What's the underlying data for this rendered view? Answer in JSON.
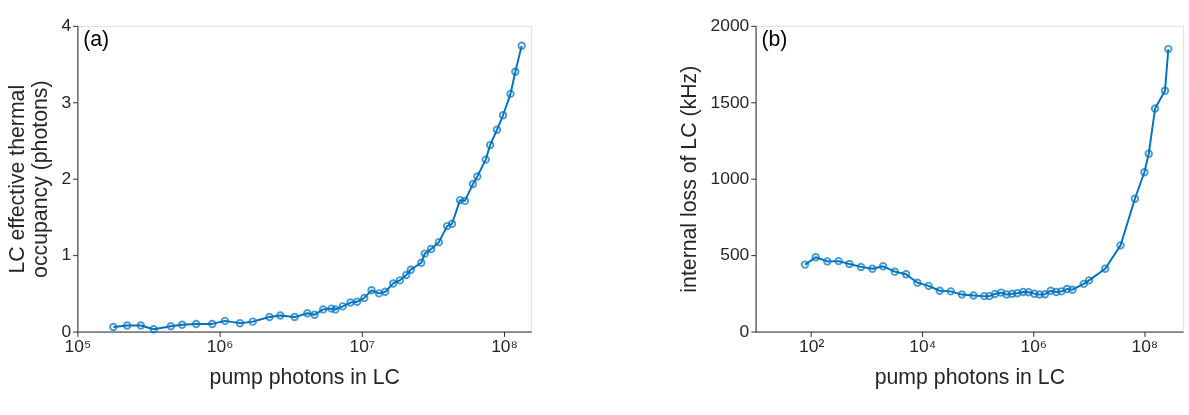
{
  "chart_data": [
    {
      "type": "line",
      "marker": "circle",
      "log": "x",
      "grid": false,
      "color": "#0072bd",
      "xlabel": "pump photons in LC",
      "ylabel": "LC effective thermal\noccupancy (photons)",
      "annotations": [
        "(a)"
      ],
      "xlim": [
        100000,
        155000000
      ],
      "ylim": [
        0,
        4
      ],
      "yticks": [
        0,
        1,
        2,
        3,
        4
      ],
      "xticks": [
        {
          "value": 100000,
          "label": "10⁵"
        },
        {
          "value": 1000000,
          "label": "10⁶"
        },
        {
          "value": 10000000,
          "label": "10⁷"
        },
        {
          "value": 100000000,
          "label": "10⁸"
        }
      ],
      "x": [
        179000,
        224000,
        279000,
        344000,
        454000,
        545000,
        684000,
        887000,
        1090000,
        1390000,
        1710000,
        2240000,
        2670000,
        3370000,
        4140000,
        4650000,
        5350000,
        6110000,
        6520000,
        7350000,
        8320000,
        9270000,
        10400000,
        11700000,
        13200000,
        14600000,
        16600000,
        18500000,
        20500000,
        22100000,
        26200000,
        27700000,
        30700000,
        34800000,
        39800000,
        43100000,
        49000000,
        53000000,
        60400000,
        64900000,
        74300000,
        79800000,
        89100000,
        98400000,
        111000000,
        120000000,
        133000000
      ],
      "values": [
        0.06,
        0.08,
        0.08,
        0.03,
        0.07,
        0.09,
        0.1,
        0.1,
        0.14,
        0.11,
        0.13,
        0.19,
        0.21,
        0.19,
        0.24,
        0.22,
        0.29,
        0.3,
        0.29,
        0.33,
        0.38,
        0.39,
        0.44,
        0.54,
        0.5,
        0.52,
        0.63,
        0.67,
        0.74,
        0.81,
        0.9,
        1.02,
        1.08,
        1.17,
        1.38,
        1.41,
        1.72,
        1.71,
        1.93,
        2.03,
        2.25,
        2.44,
        2.64,
        2.83,
        3.11,
        3.4,
        3.74
      ]
    },
    {
      "type": "line",
      "marker": "circle",
      "log": "x",
      "grid": false,
      "color": "#0072bd",
      "xlabel": "pump photons in LC",
      "ylabel": "internal loss of LC (kHz)",
      "annotations": [
        "(b)"
      ],
      "xlim": [
        10,
        500000000
      ],
      "ylim": [
        0,
        2000
      ],
      "yticks": [
        0,
        500,
        1000,
        1500,
        2000
      ],
      "xticks": [
        {
          "value": 100,
          "label": "10²"
        },
        {
          "value": 10000,
          "label": "10⁴"
        },
        {
          "value": 1000000,
          "label": "10⁶"
        },
        {
          "value": 100000000,
          "label": "10⁸"
        }
      ],
      "x": [
        77.6,
        121,
        196,
        313,
        489,
        792,
        1270,
        1980,
        3210,
        5130,
        8200,
        13000,
        20700,
        32700,
        51800,
        83800,
        131000,
        162000,
        204000,
        263000,
        330000,
        415000,
        515000,
        656000,
        824000,
        1040000,
        1300000,
        1620000,
        2060000,
        2590000,
        3210000,
        4040000,
        5070000,
        8110000,
        10100000,
        19700000,
        37200000,
        67600000,
        100000000,
        120000000,
        156000000,
        235000000,
        270000000
      ],
      "values": [
        438,
        486,
        459,
        461,
        442,
        423,
        411,
        427,
        392,
        375,
        320,
        299,
        267,
        263,
        242,
        236,
        232,
        232,
        246,
        255,
        242,
        248,
        251,
        259,
        257,
        248,
        242,
        244,
        267,
        259,
        263,
        278,
        274,
        312,
        335,
        411,
        564,
        869,
        1042,
        1164,
        1459,
        1575,
        1848
      ]
    }
  ]
}
